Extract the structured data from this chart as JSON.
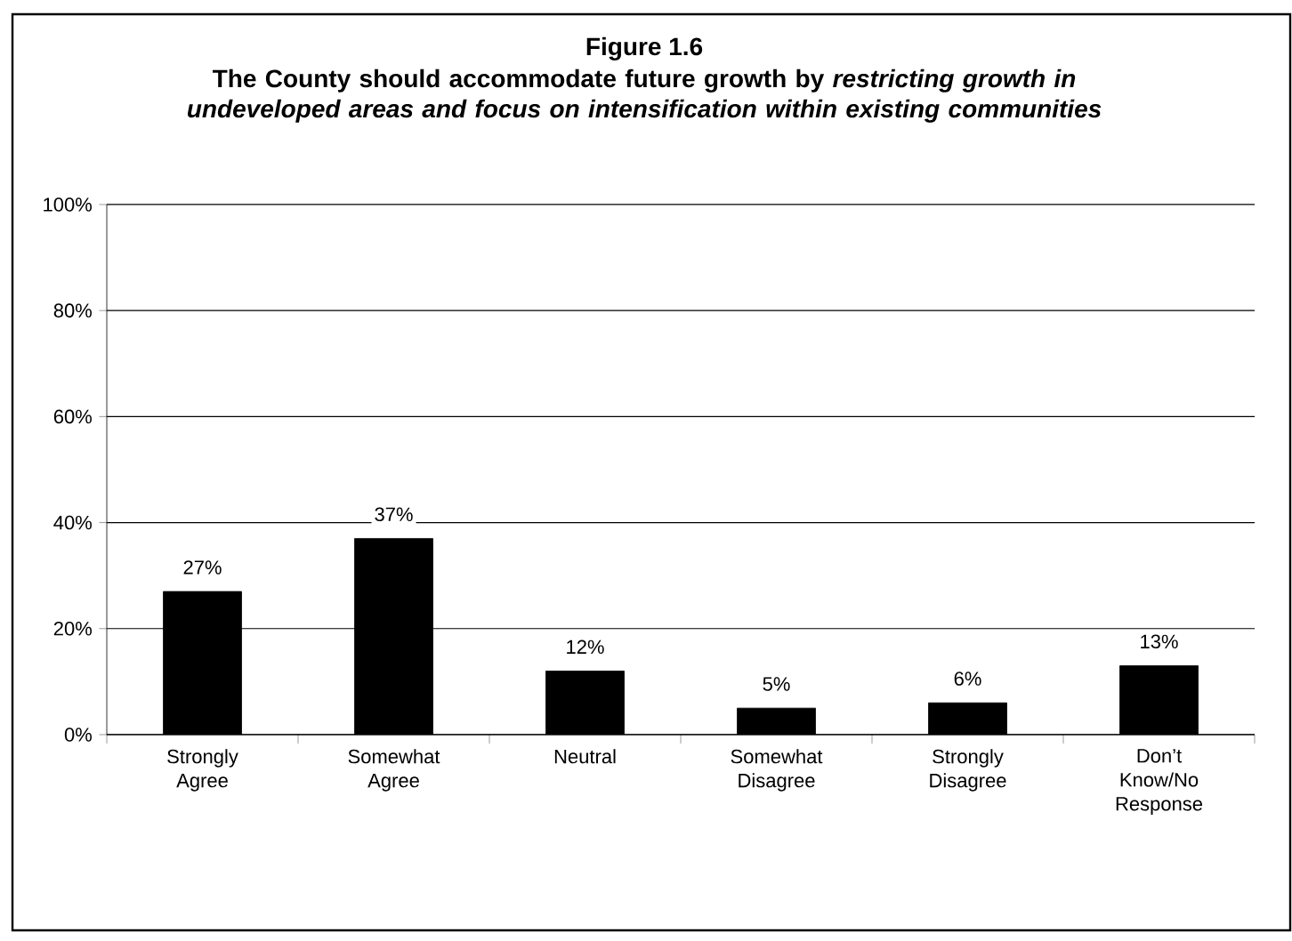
{
  "chart_data": {
    "type": "bar",
    "title": "Figure 1.6",
    "subtitle": "The County should accommodate future growth by *restricting growth in undeveloped areas and focus on intensification within existing communities*",
    "categories": [
      "Strongly Agree",
      "Somewhat Agree",
      "Neutral",
      "Somewhat Disagree",
      "Strongly Disagree",
      "Don’t Know/No Response"
    ],
    "values": [
      27,
      37,
      12,
      5,
      6,
      13
    ],
    "value_labels": [
      "27%",
      "37%",
      "12%",
      "5%",
      "6%",
      "13%"
    ],
    "color": "#000000",
    "ylim": [
      0,
      100
    ],
    "yticks": [
      {
        "value": 0,
        "label": "0%"
      },
      {
        "value": 20,
        "label": "20%"
      },
      {
        "value": 40,
        "label": "40%"
      },
      {
        "value": 60,
        "label": "60%"
      },
      {
        "value": 80,
        "label": "80%"
      },
      {
        "value": 100,
        "label": "100%"
      }
    ],
    "grid": "y"
  }
}
